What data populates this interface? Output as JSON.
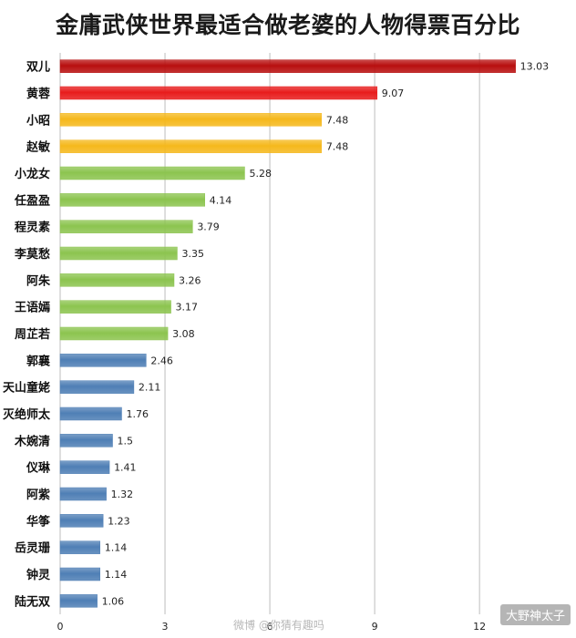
{
  "chart_data": {
    "type": "bar",
    "orientation": "horizontal",
    "title": "金庸武侠世界最适合做老婆的人物得票百分比",
    "xlabel": "",
    "ylabel": "",
    "xlim": [
      0,
      14.5
    ],
    "xticks": [
      0,
      3,
      6,
      9,
      12
    ],
    "grid": true,
    "categories": [
      "双儿",
      "黄蓉",
      "小昭",
      "赵敏",
      "小龙女",
      "任盈盈",
      "程灵素",
      "李莫愁",
      "阿朱",
      "王语嫣",
      "周芷若",
      "郭襄",
      "天山童姥",
      "灭绝师太",
      "木婉清",
      "仪琳",
      "阿紫",
      "华筝",
      "岳灵珊",
      "钟灵",
      "陆无双"
    ],
    "values": [
      13.03,
      9.07,
      7.48,
      7.48,
      5.28,
      4.14,
      3.79,
      3.35,
      3.26,
      3.17,
      3.08,
      2.46,
      2.11,
      1.76,
      1.5,
      1.41,
      1.32,
      1.23,
      1.14,
      1.14,
      1.06
    ],
    "value_labels": [
      "13.03",
      "9.07",
      "7.48",
      "7.48",
      "5.28",
      "4.14",
      "3.79",
      "3.35",
      "3.26",
      "3.17",
      "3.08",
      "2.46",
      "2.11",
      "1.76",
      "1.5",
      "1.41",
      "1.32",
      "1.23",
      "1.14",
      "1.14",
      "1.06"
    ],
    "bar_colors": [
      "#b80f0f",
      "#e81c1c",
      "#f5b81c",
      "#f5b81c",
      "#8cc44f",
      "#8cc44f",
      "#8cc44f",
      "#8cc44f",
      "#8cc44f",
      "#8cc44f",
      "#8cc44f",
      "#4f7fb5",
      "#4f7fb5",
      "#4f7fb5",
      "#4f7fb5",
      "#4f7fb5",
      "#4f7fb5",
      "#4f7fb5",
      "#4f7fb5",
      "#4f7fb5",
      "#4f7fb5"
    ]
  },
  "watermark": "大野神太子",
  "weibo_mark": "微博 @你猜有趣吗"
}
